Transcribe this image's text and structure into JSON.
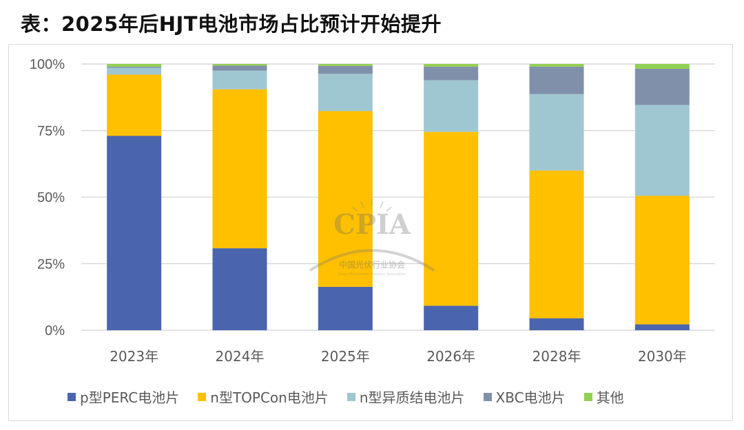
{
  "title": "表：2025年后HJT电池市场占比预计开始提升",
  "colors": {
    "p_perc": "#4a65ad",
    "n_topcon": "#ffc000",
    "n_hjt": "#9fc7d1",
    "xbc": "#8090ab",
    "other": "#92d050",
    "grid": "#d9d9d9"
  },
  "watermark": {
    "logo_text": "CPIA",
    "org_cn": "中国光伏行业协会",
    "org_en": "China Photovoltaic Industry Association"
  },
  "chart_data": {
    "type": "bar",
    "stacked": true,
    "title": "表：2025年后HJT电池市场占比预计开始提升",
    "categories": [
      "2023年",
      "2024年",
      "2025年",
      "2026年",
      "2028年",
      "2030年"
    ],
    "series": [
      {
        "name": "p型PERC电池片",
        "color": "#4a65ad",
        "values": [
          73,
          30.8,
          16.3,
          9.2,
          4.5,
          2.2
        ]
      },
      {
        "name": "n型TOPCon电池片",
        "color": "#ffc000",
        "values": [
          23,
          59.7,
          66.0,
          65.3,
          55.5,
          48.3
        ]
      },
      {
        "name": "n型异质结电池片",
        "color": "#9fc7d1",
        "values": [
          2.6,
          7.0,
          14.0,
          19.4,
          28.7,
          34.1
        ]
      },
      {
        "name": "XBC电池片",
        "color": "#8090ab",
        "values": [
          0.4,
          1.9,
          3.0,
          5.1,
          10.3,
          13.6
        ]
      },
      {
        "name": "其他",
        "color": "#92d050",
        "values": [
          1.0,
          0.6,
          0.7,
          1.0,
          1.0,
          1.8
        ]
      }
    ],
    "yticks": [
      "0%",
      "25%",
      "50%",
      "75%",
      "100%"
    ],
    "ylim": [
      0,
      100
    ],
    "xlabel": "",
    "ylabel": "",
    "grid": true,
    "legend_position": "bottom"
  }
}
